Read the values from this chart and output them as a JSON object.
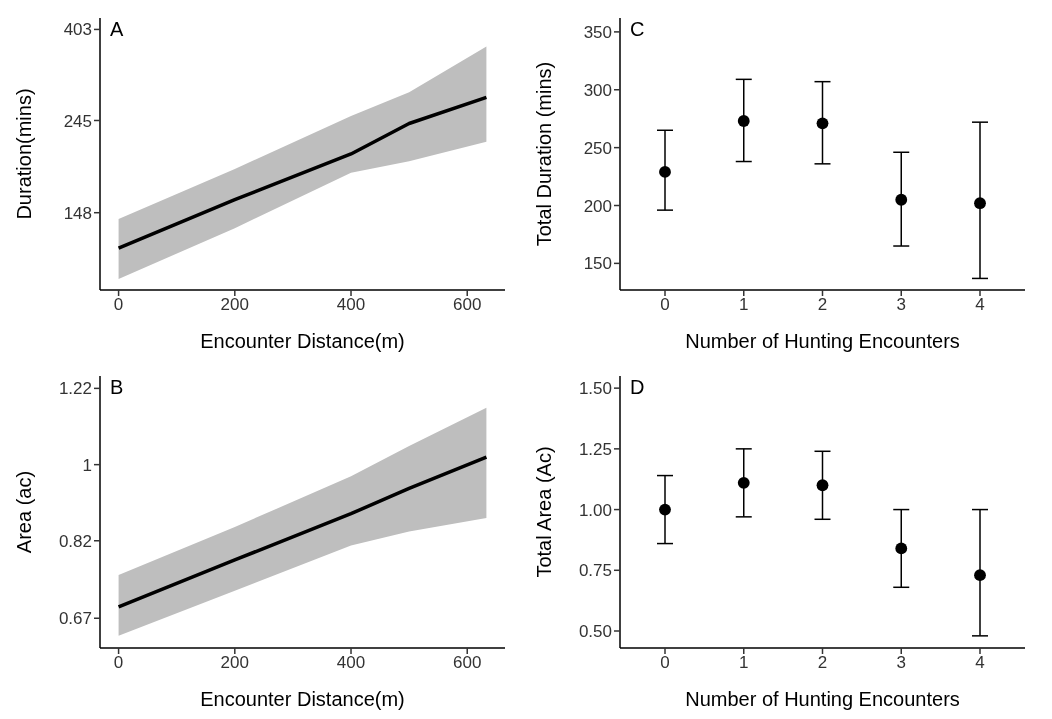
{
  "chart_data": [
    {
      "type": "line",
      "annotations": [
        "A"
      ],
      "xlabel": "Encounter Distance(m)",
      "ylabel": "Duration(mins)",
      "x": [
        0,
        200,
        400,
        500,
        633
      ],
      "series": [
        {
          "color": "#000000",
          "values": [
            122,
            159,
            204,
            241,
            278
          ],
          "lower": [
            103,
            136,
            184,
            196,
            218
          ],
          "upper": [
            143,
            188,
            251,
            286,
            367
          ]
        }
      ],
      "xlim": [
        -32,
        665
      ],
      "xticks": [
        0,
        200,
        400,
        600
      ],
      "ylim": [
        97,
        429
      ],
      "yticks": [
        148,
        245,
        403
      ],
      "log": "y"
    },
    {
      "type": "scatter",
      "annotations": [
        "C"
      ],
      "xlabel": "Number of Hunting Encounters",
      "ylabel": "Total Duration (mins)",
      "categories": [
        "0",
        "1",
        "2",
        "3",
        "4"
      ],
      "series": [
        {
          "color": "#000000",
          "values": [
            229,
            273,
            271,
            205,
            202
          ],
          "errors": [
            [
              196,
              265
            ],
            [
              238,
              309
            ],
            [
              236,
              307
            ],
            [
              165,
              246
            ],
            [
              137,
              272
            ]
          ]
        }
      ],
      "ylim": [
        127,
        362
      ],
      "yticks": [
        150,
        200,
        250,
        300,
        350
      ],
      "marker": "circle"
    },
    {
      "type": "line",
      "annotations": [
        "B"
      ],
      "xlabel": "Encounter Distance(m)",
      "ylabel": "Area (ac)",
      "x": [
        0,
        200,
        400,
        500,
        633
      ],
      "series": [
        {
          "color": "#000000",
          "values": [
            0.69,
            0.78,
            0.88,
            0.94,
            1.02
          ],
          "lower": [
            0.64,
            0.72,
            0.81,
            0.84,
            0.87
          ],
          "upper": [
            0.75,
            0.85,
            0.97,
            1.05,
            1.16
          ]
        }
      ],
      "xlim": [
        -32,
        665
      ],
      "xticks": [
        0,
        200,
        400,
        600
      ],
      "ylim": [
        0.62,
        1.26
      ],
      "yticks": [
        0.67,
        0.82,
        1,
        1.22
      ],
      "log": "y"
    },
    {
      "type": "scatter",
      "annotations": [
        "D"
      ],
      "xlabel": "Number of Hunting Encounters",
      "ylabel": "Total Area (Ac)",
      "categories": [
        "0",
        "1",
        "2",
        "3",
        "4"
      ],
      "series": [
        {
          "color": "#000000",
          "values": [
            1.0,
            1.11,
            1.1,
            0.84,
            0.73
          ],
          "errors": [
            [
              0.86,
              1.14
            ],
            [
              0.97,
              1.25
            ],
            [
              0.96,
              1.24
            ],
            [
              0.68,
              1.0
            ],
            [
              0.48,
              1.0
            ]
          ]
        }
      ],
      "ylim": [
        0.43,
        1.55
      ],
      "yticks": [
        {
          "value": 0.5,
          "label": "0.50"
        },
        {
          "value": 0.75,
          "label": "0.75"
        },
        {
          "value": 1,
          "label": "1.00"
        },
        {
          "value": 1.25,
          "label": "1.25"
        },
        {
          "value": 1.5,
          "label": "1.50"
        }
      ],
      "marker": "circle"
    }
  ]
}
